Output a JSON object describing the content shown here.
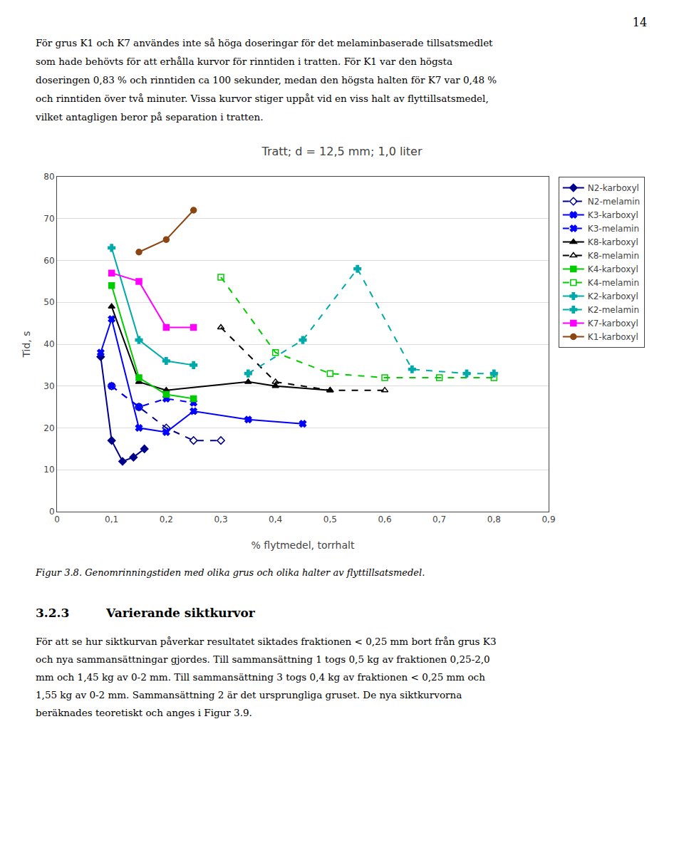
{
  "chart_data": {
    "type": "line",
    "title": "Tratt; d = 12,5 mm; 1,0 liter",
    "xlabel": "% flytmedel, torrhalt",
    "ylabel": "Tid, s",
    "xlim": [
      0,
      0.9
    ],
    "ylim": [
      0,
      80
    ],
    "xticks": [
      0,
      {
        "value": 0.1,
        "label": "0,1"
      },
      {
        "value": 0.2,
        "label": "0,2"
      },
      {
        "value": 0.3,
        "label": "0,3"
      },
      {
        "value": 0.4,
        "label": "0,4"
      },
      {
        "value": 0.5,
        "label": "0,5"
      },
      {
        "value": 0.6,
        "label": "0,6"
      },
      {
        "value": 0.7,
        "label": "0,7"
      },
      {
        "value": 0.8,
        "label": "0,8"
      },
      {
        "value": 0.9,
        "label": "0,9"
      }
    ],
    "yticks": [
      0,
      10,
      20,
      30,
      40,
      50,
      60,
      70,
      80
    ],
    "grid": "y",
    "legend": "right",
    "series": [
      {
        "name": "N2-karboxyl",
        "color": "#00008B",
        "line_style": "solid",
        "marker": "diamond",
        "x": [
          0.08,
          0.1,
          0.12,
          0.14,
          0.16
        ],
        "values": [
          37,
          17,
          12,
          13,
          15
        ]
      },
      {
        "name": "N2-melamin",
        "color": "#00008B",
        "line_style": "dashed",
        "marker": "diamond-open",
        "x": [
          0.1,
          0.15,
          0.2,
          0.25,
          0.3
        ],
        "values": [
          30,
          25,
          20,
          17,
          17
        ]
      },
      {
        "name": "K3-karboxyl",
        "color": "#0000FF",
        "line_style": "solid",
        "marker": "x",
        "x": [
          0.08,
          0.1,
          0.15,
          0.2,
          0.25,
          0.35,
          0.45
        ],
        "values": [
          38,
          46,
          20,
          19,
          24,
          22,
          21
        ]
      },
      {
        "name": "K3-melamin",
        "color": "#0000FF",
        "line_style": "dashed",
        "marker": "x",
        "x": [
          0.1,
          0.15,
          0.2,
          0.25
        ],
        "values": [
          30,
          25,
          27,
          26
        ]
      },
      {
        "name": "K8-karboxyl",
        "color": "#000000",
        "line_style": "solid",
        "marker": "triangle-up",
        "x": [
          0.1,
          0.15,
          0.2,
          0.35,
          0.4,
          0.5
        ],
        "values": [
          49,
          31,
          29,
          31,
          30,
          29
        ]
      },
      {
        "name": "K8-melamin",
        "color": "#000000",
        "line_style": "dashed",
        "marker": "triangle-up-open",
        "x": [
          0.3,
          0.4,
          0.5,
          0.6
        ],
        "values": [
          44,
          31,
          29,
          29
        ]
      },
      {
        "name": "K4-karboxyl",
        "color": "#00CC00",
        "line_style": "solid",
        "marker": "square",
        "x": [
          0.1,
          0.15,
          0.2,
          0.25
        ],
        "values": [
          54,
          32,
          28,
          27
        ]
      },
      {
        "name": "K4-melamin",
        "color": "#00CC00",
        "line_style": "dashed",
        "marker": "square-open",
        "x": [
          0.3,
          0.4,
          0.5,
          0.6,
          0.7,
          0.8
        ],
        "values": [
          56,
          38,
          33,
          32,
          32,
          32
        ]
      },
      {
        "name": "K2-karboxyl",
        "color": "#00AAAA",
        "line_style": "solid",
        "marker": "cross",
        "x": [
          0.1,
          0.15,
          0.2,
          0.25
        ],
        "values": [
          63,
          41,
          36,
          35
        ]
      },
      {
        "name": "K2-melamin",
        "color": "#00AAAA",
        "line_style": "dashed",
        "marker": "cross",
        "x": [
          0.35,
          0.45,
          0.55,
          0.65,
          0.75,
          0.8
        ],
        "values": [
          33,
          41,
          58,
          34,
          33,
          33
        ]
      },
      {
        "name": "K7-karboxyl",
        "color": "#FF00FF",
        "line_style": "solid",
        "marker": "square",
        "x": [
          0.1,
          0.15,
          0.2,
          0.25
        ],
        "values": [
          57,
          55,
          44,
          44
        ]
      },
      {
        "name": "K1-karboxyl",
        "color": "#8B4513",
        "line_style": "solid",
        "marker": "circle",
        "x": [
          0.15,
          0.2,
          0.25
        ],
        "values": [
          62,
          65,
          72
        ]
      }
    ]
  },
  "page_number": "14",
  "text_above": [
    "För grus K1 och K7 användes inte så höga doseringar för det melaminbaserade tillsatsmedlet",
    "som hade behövts för att erhålla kurvor för rinntiden i tratten. För K1 var den högsta",
    "doseringen 0,83 % och rinntiden ca 100 sekunder, medan den högsta halten för K7 var 0,48 %",
    "och rinntiden över två minuter. Vissa kurvor stiger uppåt vid en viss halt av flyttillsatsmedel,",
    "vilket antagligen beror på separation i tratten."
  ],
  "caption": "Figur 3.8. Genomrinningstiden med olika grus och olika halter av flyttillsatsmedel.",
  "section_number": "3.2.3",
  "section_title": "Varierande siktkurvor",
  "text_below": [
    "För att se hur siktkurvan påverkar resultatet siktades fraktionen < 0,25 mm bort från grus K3",
    "och nya sammansättningar gjordes. Till sammansättning 1 togs 0,5 kg av fraktionen 0,25-2,0",
    "mm och 1,45 kg av 0-2 mm. Till sammansättning 3 togs 0,4 kg av fraktionen < 0,25 mm och",
    "1,55 kg av 0-2 mm. Sammansättning 2 är det ursprungliga gruset. De nya siktkurvorna",
    "beräknades teoretiskt och anges i Figur 3.9."
  ]
}
